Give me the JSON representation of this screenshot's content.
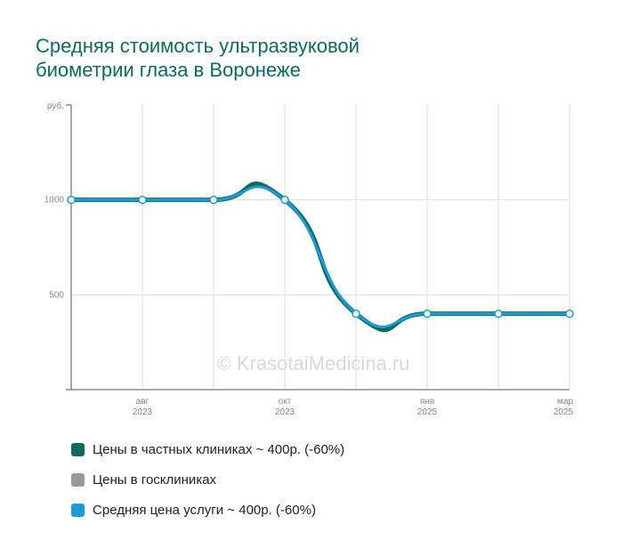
{
  "title_lines": [
    "Средняя стоимость ультразвуковой",
    "биометрии глаза в Воронеже"
  ],
  "watermark": "© KrasotaiMedicina.ru",
  "legend": [
    {
      "label": "Цены в частных клиниках ~ 400р. (-60%)",
      "color": "#0d6b5e"
    },
    {
      "label": "Цены в госклиниках",
      "color": "#999999"
    },
    {
      "label": "Средняя цена услуги ~ 400р. (-60%)",
      "color": "#1e9ad6"
    }
  ],
  "chart_data": {
    "type": "line",
    "title": "Средняя стоимость ультразвуковой биометрии глаза в Воронеже",
    "ylabel": "руб.",
    "ylim": [
      0,
      1500
    ],
    "yticks": [
      500,
      1000
    ],
    "grid": true,
    "legend_position": "bottom",
    "x_count": 8,
    "x_tick_labels": [
      {
        "index": 1,
        "line1": "авг",
        "line2": "2023"
      },
      {
        "index": 3,
        "line1": "окт",
        "line2": "2023"
      },
      {
        "index": 5,
        "line1": "янв",
        "line2": "2025"
      },
      {
        "index": 7,
        "line1": "мар",
        "line2": "2025"
      }
    ],
    "series": [
      {
        "name": "Цены в частных клиниках ~ 400р. (-60%)",
        "color": "#0d6b5e",
        "values": [
          1000,
          1000,
          1000,
          1000,
          400,
          400,
          400,
          400
        ]
      },
      {
        "name": "Средняя цена услуги ~ 400р. (-60%)",
        "color": "#1e9ad6",
        "values": [
          1000,
          1000,
          1000,
          1000,
          400,
          400,
          400,
          400
        ]
      }
    ]
  }
}
